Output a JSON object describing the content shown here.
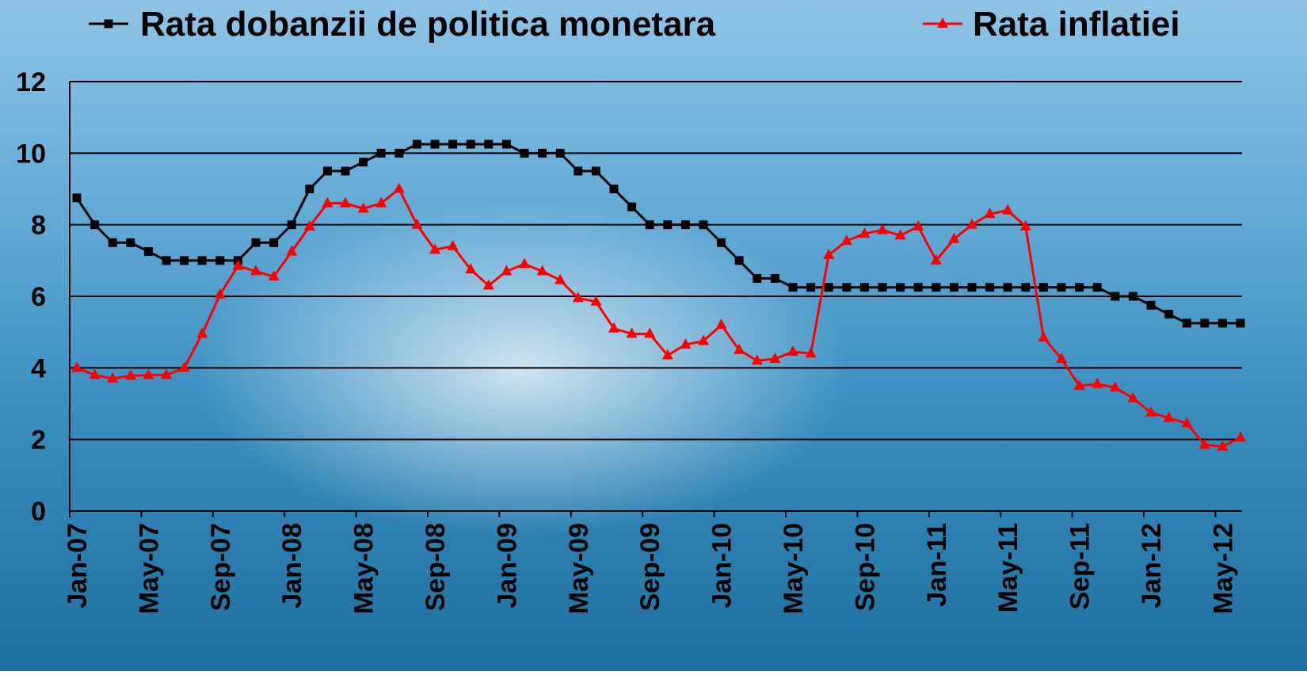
{
  "chart_data": {
    "type": "line",
    "categories": [
      "Jan-07",
      null,
      null,
      null,
      "May-07",
      null,
      null,
      null,
      "Sep-07",
      null,
      null,
      null,
      "Jan-08",
      null,
      null,
      null,
      "May-08",
      null,
      null,
      null,
      "Sep-08",
      null,
      null,
      null,
      "Jan-09",
      null,
      null,
      null,
      "May-09",
      null,
      null,
      null,
      "Sep-09",
      null,
      null,
      null,
      "Jan-10",
      null,
      null,
      null,
      "May-10",
      null,
      null,
      null,
      "Sep-10",
      null,
      null,
      null,
      "Jan-11",
      null,
      null,
      null,
      "May-11",
      null,
      null,
      null,
      "Sep-11",
      null,
      null,
      null,
      "Jan-12",
      null,
      null,
      null,
      "May-12",
      null
    ],
    "series": [
      {
        "name": "Rata dobanzii de politica monetara",
        "color": "#000000",
        "marker": "square",
        "values": [
          8.75,
          8.0,
          7.5,
          7.5,
          7.25,
          7.0,
          7.0,
          7.0,
          7.0,
          7.0,
          7.5,
          7.5,
          8.0,
          9.0,
          9.5,
          9.5,
          9.75,
          10.0,
          10.0,
          10.25,
          10.25,
          10.25,
          10.25,
          10.25,
          10.25,
          10.0,
          10.0,
          10.0,
          9.5,
          9.5,
          9.0,
          8.5,
          8.0,
          8.0,
          8.0,
          8.0,
          7.5,
          7.0,
          6.5,
          6.5,
          6.25,
          6.25,
          6.25,
          6.25,
          6.25,
          6.25,
          6.25,
          6.25,
          6.25,
          6.25,
          6.25,
          6.25,
          6.25,
          6.25,
          6.25,
          6.25,
          6.25,
          6.25,
          6.0,
          6.0,
          5.75,
          5.5,
          5.25,
          5.25,
          5.25,
          5.25
        ]
      },
      {
        "name": "Rata inflatiei",
        "color": "#ff0000",
        "marker": "triangle",
        "values": [
          4.0,
          3.8,
          3.7,
          3.78,
          3.8,
          3.8,
          4.0,
          4.95,
          6.05,
          6.85,
          6.7,
          6.55,
          7.25,
          7.95,
          8.6,
          8.6,
          8.45,
          8.6,
          9.0,
          8.0,
          7.3,
          7.4,
          6.75,
          6.3,
          6.7,
          6.9,
          6.7,
          6.45,
          5.95,
          5.85,
          5.1,
          4.95,
          4.95,
          4.35,
          4.65,
          4.75,
          5.2,
          4.5,
          4.2,
          4.25,
          4.45,
          4.4,
          7.15,
          7.55,
          7.75,
          7.85,
          7.7,
          7.95,
          7.0,
          7.6,
          8.0,
          8.3,
          8.4,
          7.95,
          4.85,
          4.25,
          3.5,
          3.55,
          3.45,
          3.15,
          2.75,
          2.6,
          2.45,
          1.85,
          1.8,
          2.05
        ]
      }
    ],
    "ylim": [
      0,
      12
    ],
    "yticks": [
      0,
      2,
      4,
      6,
      8,
      10,
      12
    ],
    "grid": true
  }
}
